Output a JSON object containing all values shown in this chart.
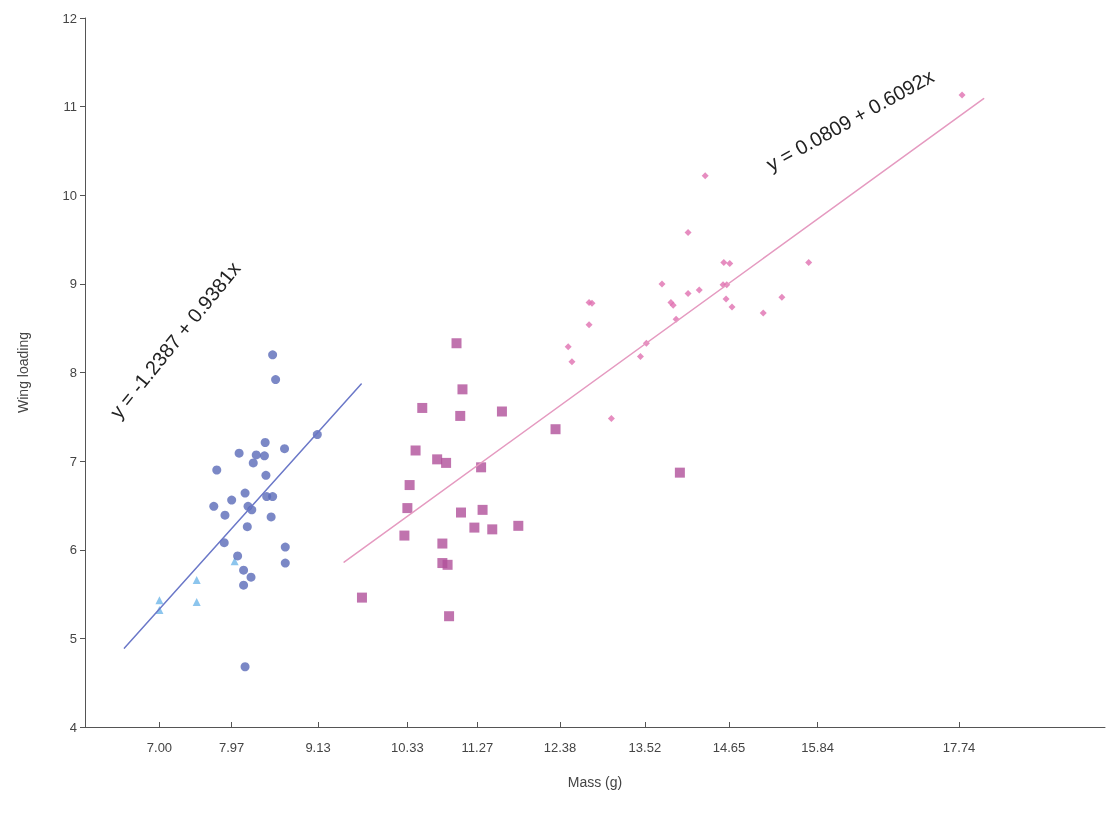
{
  "chart_data": {
    "type": "scatter",
    "xlabel": "Mass (g)",
    "ylabel": "Wing loading",
    "xlim": [
      6,
      19.7
    ],
    "ylim": [
      4,
      12
    ],
    "xticks": [
      {
        "value": 7,
        "label": "7.00"
      },
      {
        "value": 7.97,
        "label": "7.97"
      },
      {
        "value": 9.13,
        "label": "9.13"
      },
      {
        "value": 10.33,
        "label": "10.33"
      },
      {
        "value": 11.27,
        "label": "11.27"
      },
      {
        "value": 12.38,
        "label": "12.38"
      },
      {
        "value": 13.52,
        "label": "13.52"
      },
      {
        "value": 14.65,
        "label": "14.65"
      },
      {
        "value": 15.84,
        "label": "15.84"
      },
      {
        "value": 17.74,
        "label": "17.74"
      }
    ],
    "yticks": [
      4,
      5,
      6,
      7,
      8,
      9,
      10,
      11,
      12
    ],
    "grid": false,
    "annotations": [
      "y = -1.2387 + 0.9381x",
      "y = 0.0809 + 0.6092x"
    ],
    "series": [
      {
        "marker": "triangle",
        "color": "#6fb6e8",
        "x": [
          7.0,
          7.0,
          7.5,
          7.5,
          8.01
        ],
        "values": [
          5.43,
          5.32,
          5.66,
          5.41,
          5.87
        ]
      },
      {
        "marker": "circle",
        "color": "#5a6ab8",
        "x": [
          8.52,
          8.56,
          9.12,
          7.77,
          8.07,
          8.26,
          8.3,
          8.42,
          8.41,
          8.68,
          8.43,
          7.73,
          7.88,
          7.97,
          8.15,
          8.19,
          8.24,
          8.44,
          8.52,
          8.5,
          8.18,
          7.87,
          8.69,
          8.69,
          8.05,
          8.13,
          8.23,
          8.13,
          8.15
        ],
        "values": [
          8.2,
          7.92,
          7.3,
          6.9,
          7.09,
          6.98,
          7.07,
          7.21,
          7.06,
          7.14,
          6.84,
          6.49,
          6.39,
          6.56,
          6.64,
          6.49,
          6.45,
          6.6,
          6.6,
          6.37,
          6.26,
          6.08,
          6.03,
          5.85,
          5.93,
          5.77,
          5.69,
          5.6,
          4.68
        ]
      },
      {
        "marker": "square",
        "color": "#b0509a",
        "x": [
          10.99,
          11.07,
          10.53,
          11.04,
          11.6,
          12.32,
          10.44,
          10.73,
          10.85,
          11.32,
          10.36,
          10.33,
          11.05,
          11.34,
          11.23,
          11.47,
          11.82,
          10.29,
          10.8,
          10.8,
          10.87,
          9.72,
          10.89,
          13.99
        ],
        "values": [
          8.33,
          7.81,
          7.6,
          7.51,
          7.56,
          7.36,
          7.12,
          7.02,
          6.98,
          6.93,
          6.73,
          6.47,
          6.42,
          6.45,
          6.25,
          6.23,
          6.27,
          6.16,
          6.07,
          5.85,
          5.83,
          5.46,
          5.25,
          6.87
        ]
      },
      {
        "marker": "diamond",
        "color": "#e070b0",
        "x": [
          14.33,
          14.1,
          14.58,
          14.66,
          15.72,
          13.75,
          13.87,
          13.9,
          14.1,
          14.25,
          14.57,
          14.62,
          14.61,
          14.69,
          15.11,
          15.36,
          12.77,
          12.81,
          12.77,
          12.49,
          12.54,
          13.94,
          13.54,
          13.46,
          13.07,
          17.78
        ],
        "values": [
          10.22,
          9.58,
          9.24,
          9.23,
          9.24,
          9.0,
          8.79,
          8.76,
          8.89,
          8.93,
          8.99,
          8.99,
          8.83,
          8.74,
          8.67,
          8.85,
          8.79,
          8.78,
          8.54,
          8.29,
          8.12,
          8.6,
          8.33,
          8.18,
          7.48,
          11.13
        ]
      },
      {
        "type": "line",
        "marker": "none",
        "line_style": "solid",
        "color": "#6b78c8",
        "x": [
          6.53,
          9.71
        ],
        "values": [
          4.89,
          7.87
        ]
      },
      {
        "type": "line",
        "marker": "none",
        "line_style": "solid",
        "color": "#e59ac0",
        "x": [
          9.48,
          18.07
        ],
        "values": [
          5.86,
          11.09
        ]
      }
    ]
  }
}
